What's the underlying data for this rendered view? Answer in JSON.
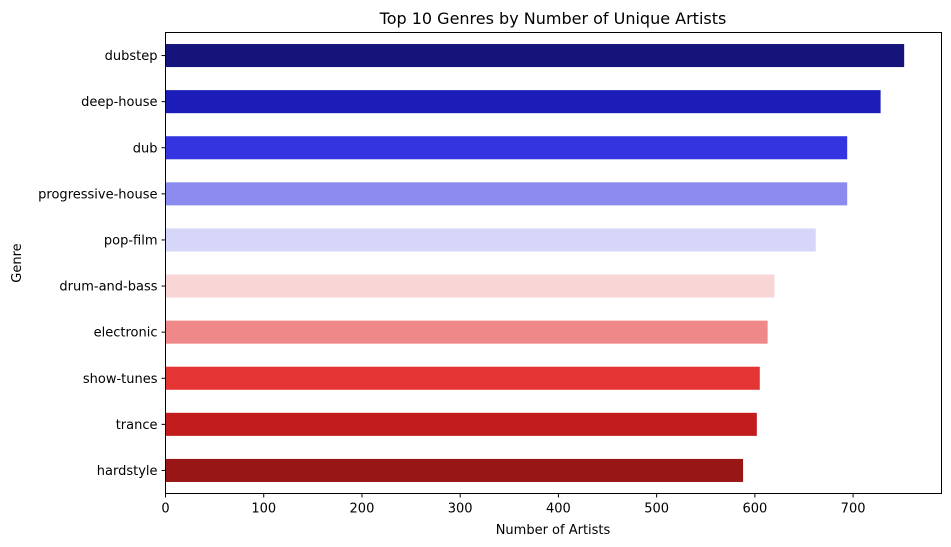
{
  "chart_data": {
    "type": "bar",
    "orientation": "horizontal",
    "title": "Top 10 Genres by Number of Unique Artists",
    "xlabel": "Number of Artists",
    "ylabel": "Genre",
    "xlim": [
      0,
      790
    ],
    "x_ticks": [
      0,
      100,
      200,
      300,
      400,
      500,
      600,
      700
    ],
    "categories": [
      "dubstep",
      "deep-house",
      "dub",
      "progressive-house",
      "pop-film",
      "drum-and-bass",
      "electronic",
      "show-tunes",
      "trance",
      "hardstyle"
    ],
    "values": [
      752,
      728,
      694,
      694,
      662,
      620,
      613,
      605,
      602,
      588
    ],
    "colors": [
      "#14147a",
      "#1c1cb8",
      "#3434e0",
      "#8a8aef",
      "#d6d6f8",
      "#f8d6d6",
      "#ef8888",
      "#e53434",
      "#c21c1c",
      "#991616"
    ],
    "grid": false,
    "legend": "none"
  }
}
